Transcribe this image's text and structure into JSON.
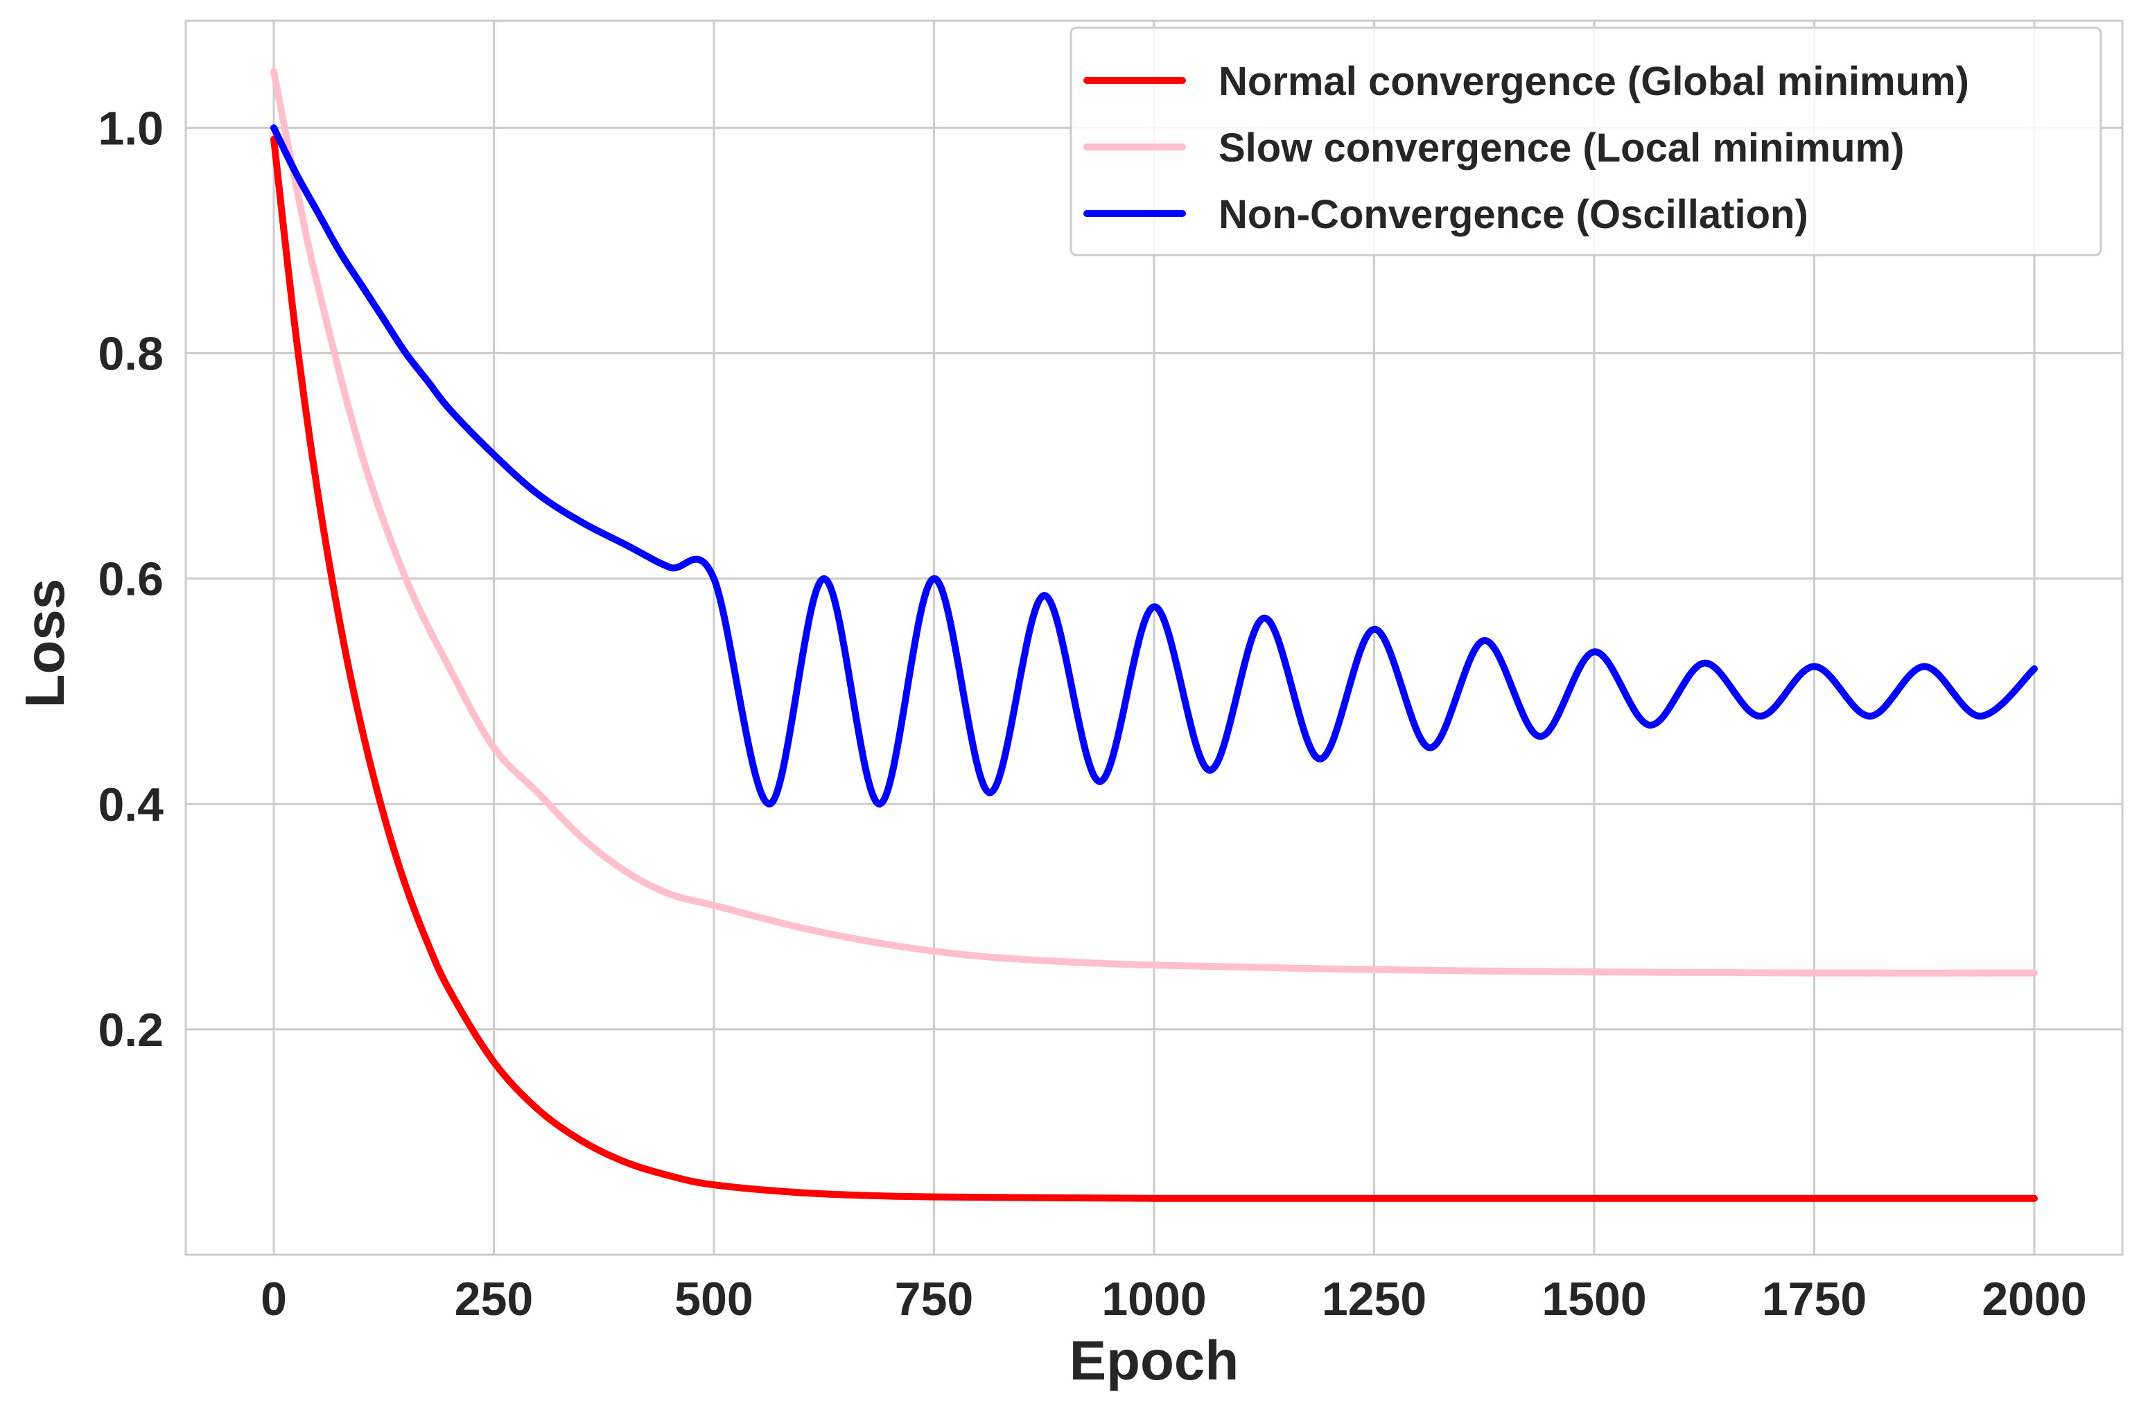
{
  "chart_data": {
    "type": "line",
    "xlabel": "Epoch",
    "ylabel": "Loss",
    "xlim": [
      -100,
      2100
    ],
    "ylim": [
      0.0,
      1.095
    ],
    "xticks": [
      0,
      250,
      500,
      750,
      1000,
      1250,
      1500,
      1750,
      2000
    ],
    "xtick_labels": [
      "0",
      "250",
      "500",
      "750",
      "1000",
      "1250",
      "1500",
      "1750",
      "2000"
    ],
    "yticks": [
      0.2,
      0.4,
      0.6,
      0.8,
      1.0
    ],
    "ytick_labels": [
      "0.2",
      "0.4",
      "0.6",
      "0.8",
      "1.0"
    ],
    "grid": true,
    "legend_position": "top-right",
    "series": [
      {
        "name": "Normal convergence (Global minimum)",
        "color": "#ff0000",
        "x": [
          0,
          25,
          50,
          75,
          100,
          125,
          150,
          175,
          200,
          250,
          300,
          350,
          400,
          450,
          500,
          600,
          700,
          800,
          1000,
          1250,
          1500,
          1750,
          2000
        ],
        "y": [
          0.99,
          0.817,
          0.676,
          0.561,
          0.467,
          0.39,
          0.327,
          0.276,
          0.234,
          0.171,
          0.129,
          0.101,
          0.082,
          0.07,
          0.062,
          0.055,
          0.052,
          0.051,
          0.05,
          0.05,
          0.05,
          0.05,
          0.05
        ]
      },
      {
        "name": "Slow convergence (Local minimum)",
        "color": "#ffc0cb",
        "x": [
          0,
          25,
          50,
          100,
          150,
          200,
          250,
          300,
          350,
          400,
          450,
          500,
          600,
          700,
          800,
          900,
          1000,
          1250,
          1500,
          1750,
          2000
        ],
        "y": [
          1.05,
          0.95,
          0.86,
          0.71,
          0.6,
          0.52,
          0.45,
          0.41,
          0.37,
          0.34,
          0.32,
          0.31,
          0.29,
          0.275,
          0.265,
          0.26,
          0.257,
          0.253,
          0.251,
          0.25,
          0.25
        ]
      },
      {
        "name": "Non-Convergence (Oscillation)",
        "color": "#0000ff",
        "x": [
          0,
          25,
          50,
          75,
          100,
          125,
          150,
          175,
          200,
          250,
          300,
          350,
          400,
          450,
          500,
          563,
          625,
          688,
          750,
          813,
          875,
          938,
          1000,
          1063,
          1125,
          1188,
          1250,
          1313,
          1375,
          1438,
          1500,
          1563,
          1625,
          1688,
          1750,
          1813,
          1875,
          1938,
          2000
        ],
        "y": [
          1.0,
          0.96,
          0.925,
          0.89,
          0.86,
          0.83,
          0.8,
          0.775,
          0.75,
          0.71,
          0.675,
          0.65,
          0.63,
          0.61,
          0.6,
          0.4,
          0.6,
          0.4,
          0.6,
          0.41,
          0.585,
          0.42,
          0.575,
          0.43,
          0.565,
          0.44,
          0.555,
          0.45,
          0.545,
          0.46,
          0.535,
          0.47,
          0.525,
          0.478,
          0.522,
          0.478,
          0.522,
          0.478,
          0.52
        ]
      }
    ]
  }
}
